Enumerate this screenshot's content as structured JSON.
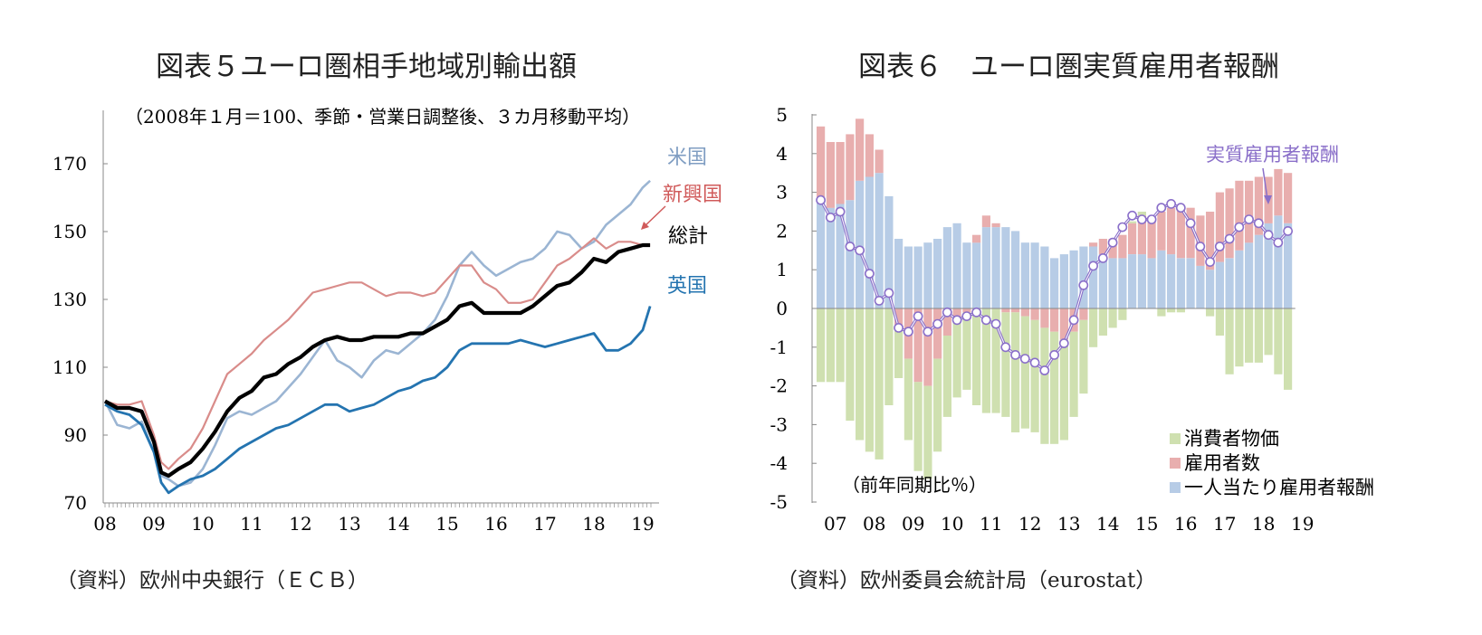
{
  "left": {
    "title": "図表５ユーロ圏相手地域別輸出額",
    "note": "（2008年１月＝100、季節・営業日調整後、３カ月移動平均）",
    "source": "（資料）欧州中央銀行（ＥＣＢ）"
  },
  "right": {
    "title": "図表６　ユーロ圏実質雇用者報酬",
    "note": "（前年同期比％）",
    "source": "（資料）欧州委員会統計局（eurostat）"
  },
  "colors": {
    "usa": "#9bb5d3",
    "emerging": "#d98c8a",
    "total": "#000000",
    "uk": "#2474b0",
    "cpi": "#cfe0b0",
    "employees": "#e8aeae",
    "per_employee": "#b7cce6",
    "real": "#8a6fc9"
  },
  "chart_data": [
    {
      "type": "line",
      "xlabels": [
        "08",
        "09",
        "10",
        "11",
        "12",
        "13",
        "14",
        "15",
        "16",
        "17",
        "18",
        "19"
      ],
      "ylim": [
        70,
        180
      ],
      "yticks": [
        70,
        90,
        110,
        130,
        150,
        170
      ],
      "x_start": 2008.0,
      "series": [
        {
          "name": "米国",
          "x": [
            2008.0,
            2008.25,
            2008.5,
            2008.75,
            2009.0,
            2009.15,
            2009.3,
            2009.5,
            2009.75,
            2010.0,
            2010.25,
            2010.5,
            2010.75,
            2011.0,
            2011.25,
            2011.5,
            2011.75,
            2012.0,
            2012.25,
            2012.5,
            2012.75,
            2013.0,
            2013.25,
            2013.5,
            2013.75,
            2014.0,
            2014.25,
            2014.5,
            2014.75,
            2015.0,
            2015.25,
            2015.5,
            2015.75,
            2016.0,
            2016.25,
            2016.5,
            2016.75,
            2017.0,
            2017.25,
            2017.5,
            2017.75,
            2018.0,
            2018.25,
            2018.5,
            2018.75,
            2019.0,
            2019.15
          ],
          "values": [
            100,
            93,
            92,
            94,
            85,
            78,
            77,
            75,
            76,
            80,
            87,
            95,
            97,
            96,
            98,
            100,
            104,
            108,
            113,
            118,
            112,
            110,
            107,
            112,
            115,
            114,
            117,
            120,
            124,
            131,
            140,
            144,
            140,
            137,
            139,
            141,
            142,
            145,
            150,
            149,
            145,
            147,
            152,
            155,
            158,
            163,
            165
          ]
        },
        {
          "name": "新興国",
          "x": [
            2008.0,
            2008.25,
            2008.5,
            2008.75,
            2009.0,
            2009.15,
            2009.3,
            2009.5,
            2009.75,
            2010.0,
            2010.25,
            2010.5,
            2010.75,
            2011.0,
            2011.25,
            2011.5,
            2011.75,
            2012.0,
            2012.25,
            2012.5,
            2012.75,
            2013.0,
            2013.25,
            2013.5,
            2013.75,
            2014.0,
            2014.25,
            2014.5,
            2014.75,
            2015.0,
            2015.25,
            2015.5,
            2015.75,
            2016.0,
            2016.25,
            2016.5,
            2016.75,
            2017.0,
            2017.25,
            2017.5,
            2017.75,
            2018.0,
            2018.25,
            2018.5,
            2018.75,
            2019.0,
            2019.15
          ],
          "values": [
            100,
            99,
            99,
            100,
            90,
            82,
            80,
            83,
            86,
            92,
            100,
            108,
            111,
            114,
            118,
            121,
            124,
            128,
            132,
            133,
            134,
            135,
            135,
            133,
            131,
            132,
            132,
            131,
            132,
            136,
            140,
            140,
            135,
            133,
            129,
            129,
            130,
            135,
            140,
            142,
            145,
            148,
            145,
            147,
            147,
            146,
            146
          ]
        },
        {
          "name": "総計",
          "x": [
            2008.0,
            2008.25,
            2008.5,
            2008.75,
            2009.0,
            2009.15,
            2009.3,
            2009.5,
            2009.75,
            2010.0,
            2010.25,
            2010.5,
            2010.75,
            2011.0,
            2011.25,
            2011.5,
            2011.75,
            2012.0,
            2012.25,
            2012.5,
            2012.75,
            2013.0,
            2013.25,
            2013.5,
            2013.75,
            2014.0,
            2014.25,
            2014.5,
            2014.75,
            2015.0,
            2015.25,
            2015.5,
            2015.75,
            2016.0,
            2016.25,
            2016.5,
            2016.75,
            2017.0,
            2017.25,
            2017.5,
            2017.75,
            2018.0,
            2018.25,
            2018.5,
            2018.75,
            2019.0,
            2019.15
          ],
          "values": [
            100,
            98,
            98,
            97,
            88,
            79,
            78,
            80,
            82,
            86,
            91,
            97,
            101,
            103,
            107,
            108,
            111,
            113,
            116,
            118,
            119,
            118,
            118,
            119,
            119,
            119,
            120,
            120,
            122,
            124,
            128,
            129,
            126,
            126,
            126,
            126,
            128,
            131,
            134,
            135,
            138,
            142,
            141,
            144,
            145,
            146,
            146
          ]
        },
        {
          "name": "英国",
          "x": [
            2008.0,
            2008.25,
            2008.5,
            2008.75,
            2009.0,
            2009.15,
            2009.3,
            2009.5,
            2009.75,
            2010.0,
            2010.25,
            2010.5,
            2010.75,
            2011.0,
            2011.25,
            2011.5,
            2011.75,
            2012.0,
            2012.25,
            2012.5,
            2012.75,
            2013.0,
            2013.25,
            2013.5,
            2013.75,
            2014.0,
            2014.25,
            2014.5,
            2014.75,
            2015.0,
            2015.25,
            2015.5,
            2015.75,
            2016.0,
            2016.25,
            2016.5,
            2016.75,
            2017.0,
            2017.25,
            2017.5,
            2017.75,
            2018.0,
            2018.25,
            2018.5,
            2018.75,
            2019.0,
            2019.15
          ],
          "values": [
            99,
            97,
            96,
            93,
            85,
            76,
            73,
            75,
            77,
            78,
            80,
            83,
            86,
            88,
            90,
            92,
            93,
            95,
            97,
            99,
            99,
            97,
            98,
            99,
            101,
            103,
            104,
            106,
            107,
            110,
            115,
            117,
            117,
            117,
            117,
            118,
            117,
            116,
            117,
            118,
            119,
            120,
            115,
            115,
            117,
            121,
            128
          ]
        }
      ]
    },
    {
      "type": "bar",
      "stacked": true,
      "xlabels": [
        "07",
        "08",
        "09",
        "10",
        "11",
        "12",
        "13",
        "14",
        "15",
        "16",
        "17",
        "18",
        "19"
      ],
      "ylim": [
        -5,
        5
      ],
      "yticks": [
        5,
        4,
        3,
        2,
        1,
        0,
        -1,
        -2,
        -3,
        -4,
        -5
      ],
      "categories": [
        "07Q1",
        "07Q2",
        "07Q3",
        "07Q4",
        "08Q1",
        "08Q2",
        "08Q3",
        "08Q4",
        "09Q1",
        "09Q2",
        "09Q3",
        "09Q4",
        "10Q1",
        "10Q2",
        "10Q3",
        "10Q4",
        "11Q1",
        "11Q2",
        "11Q3",
        "11Q4",
        "12Q1",
        "12Q2",
        "12Q3",
        "12Q4",
        "13Q1",
        "13Q2",
        "13Q3",
        "13Q4",
        "14Q1",
        "14Q2",
        "14Q3",
        "14Q4",
        "15Q1",
        "15Q2",
        "15Q3",
        "15Q4",
        "16Q1",
        "16Q2",
        "16Q3",
        "16Q4",
        "17Q1",
        "17Q2",
        "17Q3",
        "17Q4",
        "18Q1",
        "18Q2",
        "18Q3",
        "18Q4",
        "19Q1"
      ],
      "series": [
        {
          "name": "消費者物価",
          "values": [
            -1.9,
            -1.9,
            -1.9,
            -2.9,
            -3.4,
            -3.7,
            -3.9,
            -2.5,
            -1.3,
            -2.1,
            -2.3,
            -2.4,
            -2.4,
            -2.1,
            -2.0,
            -2.0,
            -2.5,
            -2.7,
            -2.7,
            -2.7,
            -3.1,
            -2.9,
            -2.9,
            -3.0,
            -2.9,
            -2.6,
            -2.2,
            -1.9,
            -1.0,
            -0.7,
            -0.5,
            -0.3,
            0.05,
            0.1,
            0.0,
            -0.2,
            -0.1,
            -0.1,
            0.0,
            0.0,
            -0.2,
            -0.7,
            -1.7,
            -1.5,
            -1.4,
            -1.4,
            -1.2,
            -1.7,
            -2.1
          ]
        },
        {
          "name": "雇用者数",
          "values": [
            1.9,
            1.7,
            1.6,
            1.7,
            1.6,
            1.1,
            0.6,
            0.0,
            -0.5,
            -1.3,
            -1.9,
            -2.0,
            -1.3,
            -0.7,
            -0.3,
            -0.1,
            0.2,
            0.3,
            0.1,
            -0.1,
            -0.1,
            -0.2,
            -0.3,
            -0.5,
            -0.6,
            -0.8,
            -0.6,
            -0.3,
            0.1,
            0.4,
            0.5,
            0.6,
            0.8,
            1.0,
            1.0,
            1.0,
            1.2,
            1.3,
            1.3,
            1.3,
            1.5,
            1.8,
            1.8,
            1.8,
            1.6,
            1.5,
            1.2,
            1.2,
            1.3
          ]
        },
        {
          "name": "一人当たり雇用者報酬",
          "values": [
            2.8,
            2.6,
            2.7,
            2.8,
            3.3,
            3.4,
            3.5,
            2.9,
            1.8,
            1.6,
            1.6,
            1.7,
            1.8,
            2.1,
            2.2,
            1.7,
            1.7,
            2.1,
            2.1,
            2.1,
            2.0,
            1.7,
            1.7,
            1.6,
            1.3,
            1.4,
            1.5,
            1.6,
            1.6,
            1.4,
            1.3,
            1.3,
            1.4,
            1.4,
            1.3,
            1.5,
            1.4,
            1.3,
            1.3,
            1.1,
            1.0,
            1.2,
            1.3,
            1.5,
            1.7,
            1.9,
            2.2,
            2.4,
            2.2
          ]
        },
        {
          "name": "実質雇用者報酬",
          "type": "line",
          "values": [
            2.8,
            2.35,
            2.5,
            1.6,
            1.5,
            0.9,
            0.2,
            0.4,
            -0.5,
            -0.6,
            -0.2,
            -0.6,
            -0.4,
            -0.1,
            -0.3,
            -0.2,
            -0.1,
            -0.3,
            -0.4,
            -1.0,
            -1.2,
            -1.3,
            -1.4,
            -1.6,
            -1.2,
            -0.9,
            -0.3,
            0.6,
            1.1,
            1.3,
            1.7,
            2.1,
            2.4,
            2.3,
            2.3,
            2.6,
            2.7,
            2.6,
            2.2,
            1.6,
            1.2,
            1.6,
            1.8,
            2.1,
            2.3,
            2.2,
            1.9,
            1.7,
            2.0
          ]
        }
      ]
    }
  ]
}
